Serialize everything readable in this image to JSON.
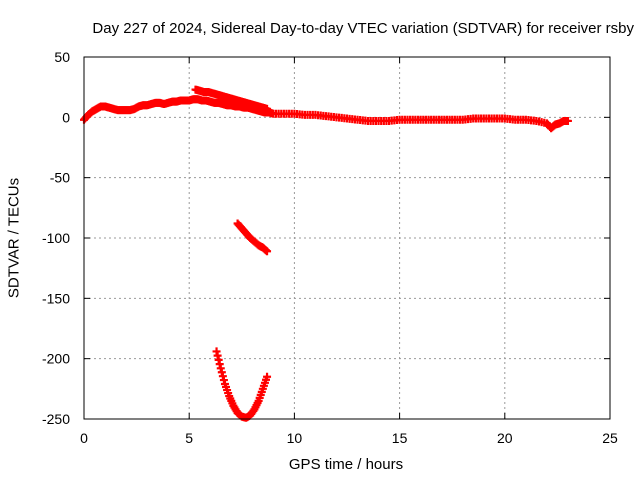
{
  "chart_data": {
    "type": "scatter",
    "title": "Day 227 of 2024, Sidereal Day-to-day VTEC variation (SDTVAR) for receiver rsby",
    "xlabel": "GPS time / hours",
    "ylabel": "SDTVAR / TECUs",
    "xlim": [
      0,
      25
    ],
    "ylim": [
      -250,
      50
    ],
    "xticks": [
      0,
      5,
      10,
      15,
      20,
      25
    ],
    "yticks": [
      50,
      0,
      -50,
      -100,
      -150,
      -200,
      -250
    ],
    "grid": true,
    "marker": "+",
    "series_color": "#ff0000",
    "series": [
      {
        "points": [
          [
            0.0,
            -2
          ],
          [
            0.2,
            2
          ],
          [
            0.4,
            5
          ],
          [
            0.6,
            7
          ],
          [
            0.8,
            9
          ],
          [
            1.0,
            9
          ],
          [
            1.2,
            8
          ],
          [
            1.4,
            7
          ],
          [
            1.6,
            6
          ],
          [
            1.8,
            6
          ],
          [
            2.0,
            6
          ],
          [
            2.2,
            6
          ],
          [
            2.4,
            7
          ],
          [
            2.6,
            9
          ],
          [
            2.8,
            10
          ],
          [
            3.0,
            10
          ],
          [
            3.2,
            11
          ],
          [
            3.4,
            12
          ],
          [
            3.6,
            12
          ],
          [
            3.8,
            11
          ],
          [
            4.0,
            12
          ],
          [
            4.2,
            13
          ],
          [
            4.4,
            13
          ],
          [
            4.6,
            14
          ],
          [
            4.8,
            14
          ],
          [
            5.0,
            14
          ],
          [
            5.2,
            15
          ],
          [
            5.4,
            15
          ],
          [
            5.6,
            14
          ],
          [
            5.8,
            14
          ],
          [
            6.0,
            13
          ],
          [
            6.2,
            12
          ],
          [
            6.4,
            12
          ],
          [
            6.6,
            11
          ],
          [
            6.8,
            10
          ],
          [
            7.0,
            10
          ],
          [
            7.2,
            9
          ],
          [
            7.4,
            9
          ],
          [
            7.6,
            8
          ],
          [
            7.8,
            8
          ],
          [
            8.0,
            7
          ],
          [
            8.2,
            6
          ],
          [
            8.4,
            5
          ],
          [
            8.6,
            4
          ],
          [
            8.8,
            4
          ],
          [
            9.0,
            3
          ],
          [
            9.5,
            3
          ],
          [
            10.0,
            3
          ],
          [
            10.5,
            2
          ],
          [
            11.0,
            2
          ],
          [
            11.5,
            1
          ],
          [
            12.0,
            0
          ],
          [
            12.5,
            -1
          ],
          [
            13.0,
            -2
          ],
          [
            13.5,
            -3
          ],
          [
            14.0,
            -3
          ],
          [
            14.5,
            -3
          ],
          [
            15.0,
            -2
          ],
          [
            15.5,
            -2
          ],
          [
            16.0,
            -2
          ],
          [
            16.5,
            -2
          ],
          [
            17.0,
            -2
          ],
          [
            17.5,
            -2
          ],
          [
            18.0,
            -2
          ],
          [
            18.5,
            -1
          ],
          [
            19.0,
            -1
          ],
          [
            19.5,
            -1
          ],
          [
            20.0,
            -1
          ],
          [
            20.5,
            -2
          ],
          [
            21.0,
            -2
          ],
          [
            21.5,
            -3
          ],
          [
            22.0,
            -5
          ],
          [
            22.2,
            -9
          ],
          [
            22.4,
            -6
          ],
          [
            22.6,
            -5
          ],
          [
            22.8,
            -3
          ],
          [
            23.0,
            -3
          ]
        ]
      },
      {
        "points": [
          [
            5.3,
            23
          ],
          [
            5.5,
            22
          ],
          [
            5.7,
            21
          ],
          [
            5.9,
            21
          ],
          [
            6.1,
            20
          ],
          [
            6.3,
            19
          ],
          [
            6.5,
            18
          ],
          [
            6.7,
            17
          ],
          [
            6.9,
            16
          ],
          [
            7.1,
            15
          ],
          [
            7.3,
            14
          ],
          [
            7.5,
            13
          ],
          [
            7.7,
            12
          ],
          [
            7.9,
            11
          ],
          [
            8.1,
            10
          ],
          [
            8.3,
            9
          ],
          [
            8.5,
            8
          ],
          [
            8.7,
            7
          ]
        ]
      },
      {
        "points": [
          [
            7.3,
            -88
          ],
          [
            7.5,
            -92
          ],
          [
            7.7,
            -96
          ],
          [
            7.9,
            -100
          ],
          [
            8.1,
            -103
          ],
          [
            8.3,
            -106
          ],
          [
            8.5,
            -108
          ],
          [
            8.7,
            -111
          ]
        ]
      },
      {
        "points": [
          [
            6.3,
            -194
          ],
          [
            6.5,
            -208
          ],
          [
            6.7,
            -221
          ],
          [
            6.9,
            -231
          ],
          [
            7.1,
            -239
          ],
          [
            7.3,
            -245
          ],
          [
            7.5,
            -248
          ],
          [
            7.7,
            -249
          ],
          [
            7.9,
            -247
          ],
          [
            8.1,
            -242
          ],
          [
            8.3,
            -235
          ],
          [
            8.5,
            -225
          ],
          [
            8.7,
            -215
          ]
        ]
      }
    ]
  }
}
